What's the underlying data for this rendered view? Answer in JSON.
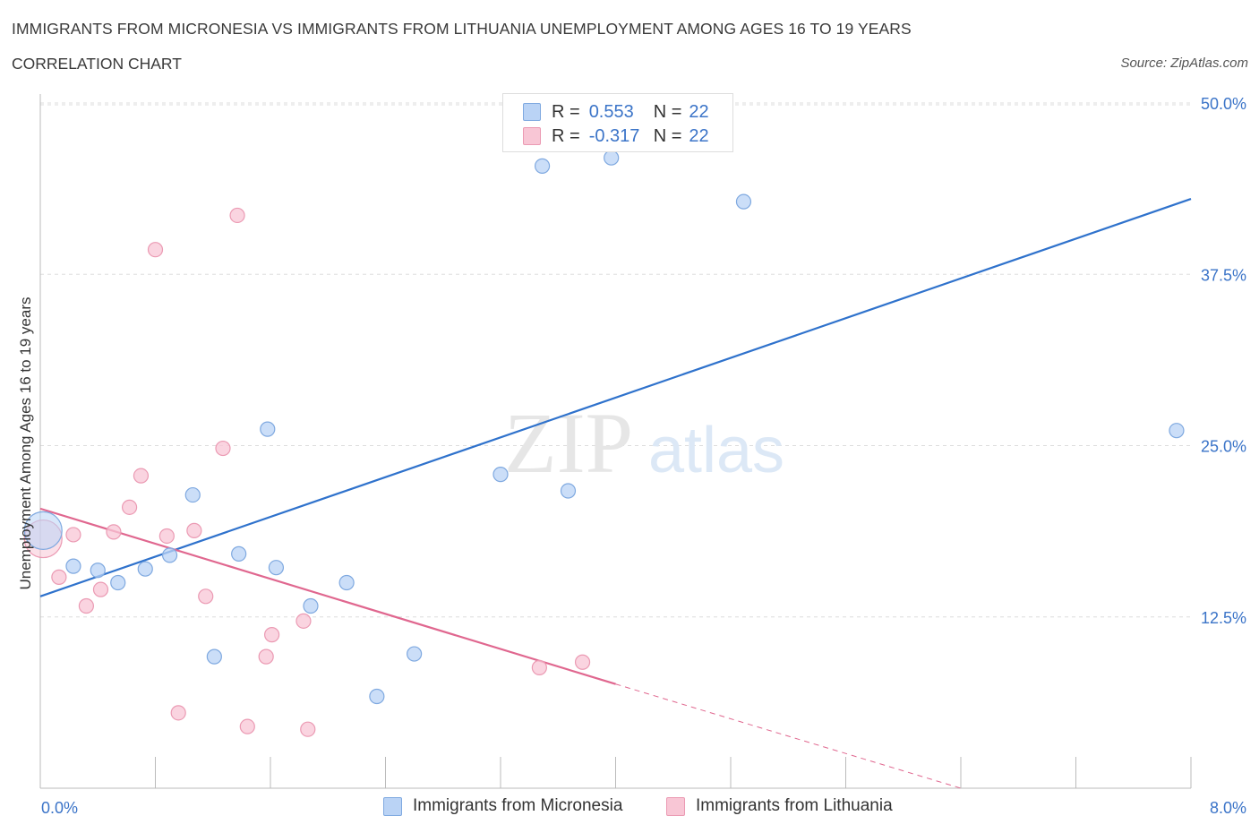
{
  "title": "IMMIGRANTS FROM MICRONESIA VS IMMIGRANTS FROM LITHUANIA UNEMPLOYMENT AMONG AGES 16 TO 19 YEARS",
  "subtitle": "CORRELATION CHART",
  "source": "Source: ZipAtlas.com",
  "watermark": {
    "zip": "ZIP",
    "atlas": "atlas"
  },
  "legend": {
    "r_label": "R =",
    "n_label": "N =",
    "rows": [
      {
        "r": "0.553",
        "n": "22"
      },
      {
        "r": "-0.317",
        "n": "22"
      }
    ]
  },
  "colors": {
    "micronesia_fill": "#bad3f5",
    "micronesia_stroke": "#7fa9e0",
    "micronesia_line": "#2f72cc",
    "lithuania_fill": "#f8c6d5",
    "lithuania_stroke": "#eb9ab3",
    "lithuania_line": "#e0678f",
    "axis_label": "#3b74c8",
    "grid": "#dddddd"
  },
  "chart_data": {
    "type": "scatter",
    "title": "IMMIGRANTS FROM MICRONESIA VS IMMIGRANTS FROM LITHUANIA UNEMPLOYMENT AMONG AGES 16 TO 19 YEARS",
    "xlabel": "",
    "ylabel": "Unemployment Among Ages 16 to 19 years",
    "xlim": [
      0,
      8
    ],
    "ylim": [
      0,
      50
    ],
    "x_tick_labels": [
      "0.0%",
      "8.0%"
    ],
    "y_ticks": [
      12.5,
      25.0,
      37.5,
      50.0
    ],
    "y_tick_labels": [
      "12.5%",
      "25.0%",
      "37.5%",
      "50.0%"
    ],
    "grid": true,
    "legend_position": "top-center",
    "series": [
      {
        "name": "Immigrants from Micronesia",
        "color": "#bad3f5",
        "points": [
          {
            "x": 0.02,
            "y": 18.8,
            "big": true
          },
          {
            "x": 0.23,
            "y": 16.2
          },
          {
            "x": 0.4,
            "y": 15.9
          },
          {
            "x": 0.54,
            "y": 15.0
          },
          {
            "x": 0.73,
            "y": 16.0
          },
          {
            "x": 0.9,
            "y": 17.0
          },
          {
            "x": 1.06,
            "y": 21.4
          },
          {
            "x": 1.21,
            "y": 9.6
          },
          {
            "x": 1.38,
            "y": 17.1
          },
          {
            "x": 1.58,
            "y": 26.2
          },
          {
            "x": 1.64,
            "y": 16.1
          },
          {
            "x": 1.88,
            "y": 13.3
          },
          {
            "x": 2.13,
            "y": 15.0
          },
          {
            "x": 2.34,
            "y": 6.7
          },
          {
            "x": 2.6,
            "y": 9.8
          },
          {
            "x": 3.2,
            "y": 22.9
          },
          {
            "x": 3.49,
            "y": 45.4
          },
          {
            "x": 3.67,
            "y": 21.7
          },
          {
            "x": 3.78,
            "y": 47.2
          },
          {
            "x": 3.97,
            "y": 46.0
          },
          {
            "x": 4.89,
            "y": 42.8
          },
          {
            "x": 7.9,
            "y": 26.1
          }
        ],
        "trend": {
          "x": [
            0,
            8
          ],
          "y": [
            14.0,
            43.0
          ]
        }
      },
      {
        "name": "Immigrants from Lithuania",
        "color": "#f8c6d5",
        "points": [
          {
            "x": 0.02,
            "y": 18.2,
            "big": true
          },
          {
            "x": 0.13,
            "y": 15.4
          },
          {
            "x": 0.23,
            "y": 18.5
          },
          {
            "x": 0.32,
            "y": 13.3
          },
          {
            "x": 0.42,
            "y": 14.5
          },
          {
            "x": 0.51,
            "y": 18.7
          },
          {
            "x": 0.62,
            "y": 20.5
          },
          {
            "x": 0.7,
            "y": 22.8
          },
          {
            "x": 0.8,
            "y": 39.3
          },
          {
            "x": 0.88,
            "y": 18.4
          },
          {
            "x": 0.96,
            "y": 5.5
          },
          {
            "x": 1.07,
            "y": 18.8
          },
          {
            "x": 1.15,
            "y": 14.0
          },
          {
            "x": 1.27,
            "y": 24.8
          },
          {
            "x": 1.37,
            "y": 41.8
          },
          {
            "x": 1.44,
            "y": 4.5
          },
          {
            "x": 1.57,
            "y": 9.6
          },
          {
            "x": 1.61,
            "y": 11.2
          },
          {
            "x": 1.83,
            "y": 12.2
          },
          {
            "x": 1.86,
            "y": 4.3
          },
          {
            "x": 3.47,
            "y": 8.8
          },
          {
            "x": 3.77,
            "y": 9.2
          }
        ],
        "trend": {
          "x": [
            0,
            4.0
          ],
          "y": [
            20.4,
            7.6
          ]
        },
        "trend_extension": {
          "x": [
            4.0,
            6.4
          ],
          "y": [
            7.6,
            0.0
          ]
        }
      }
    ]
  }
}
